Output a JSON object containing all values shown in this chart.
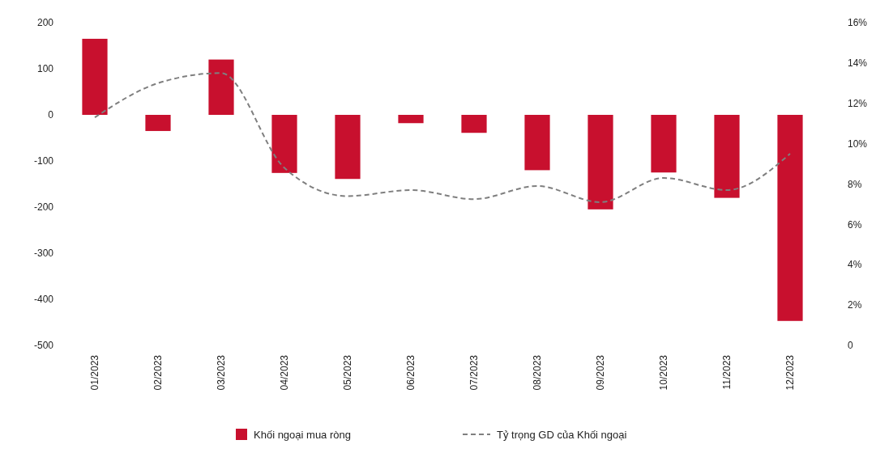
{
  "chart_data": {
    "type": "bar",
    "categories": [
      "01/2023",
      "02/2023",
      "03/2023",
      "04/2023",
      "05/2023",
      "06/2023",
      "07/2023",
      "08/2023",
      "09/2023",
      "10/2023",
      "11/2023",
      "12/2023"
    ],
    "series": [
      {
        "name": "Khối ngoại mua ròng",
        "color": "#c8102e",
        "values": [
          165,
          -35,
          120,
          -126,
          -139,
          -18,
          -39,
          -120,
          -205,
          -125,
          -180,
          -447
        ]
      },
      {
        "name": "Tỷ trọng GD của Khối ngoại",
        "type": "line",
        "axis": "y2",
        "color": "#7f7f7f",
        "line_style": "dashed",
        "values": [
          11.3,
          13.0,
          13.5,
          8.8,
          7.4,
          7.7,
          7.25,
          7.9,
          7.1,
          8.3,
          7.7,
          9.5
        ]
      }
    ],
    "ylim": [
      -500,
      200
    ],
    "yticks": [
      -500,
      -400,
      -300,
      -200,
      -100,
      0,
      100,
      200
    ],
    "y2lim": [
      0,
      16
    ],
    "y2ticks": [
      0,
      {
        "value": 2,
        "label": "2%"
      },
      {
        "value": 4,
        "label": "4%"
      },
      {
        "value": 6,
        "label": "6%"
      },
      {
        "value": 8,
        "label": "8%"
      },
      {
        "value": 10,
        "label": "10%"
      },
      {
        "value": 12,
        "label": "12%"
      },
      {
        "value": 14,
        "label": "14%"
      },
      {
        "value": 16,
        "label": "16%"
      }
    ],
    "grid": false,
    "legend": "bottom",
    "marker": "none"
  }
}
